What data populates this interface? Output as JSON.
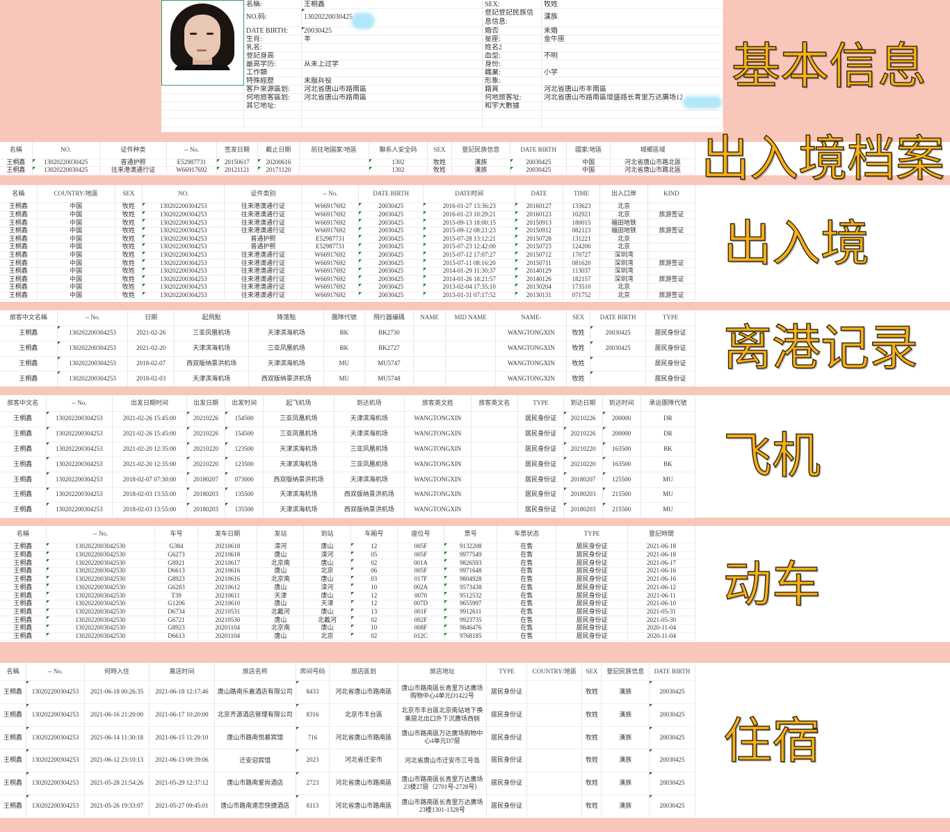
{
  "colors": {
    "background": "#f9c6ba",
    "overlay_text": "#f6b01a",
    "redaction": "#aee6fa"
  },
  "overlays": [
    "基本信息",
    "出入境档案",
    "出入境",
    "离港记录",
    "飞机",
    "动车",
    "住宿"
  ],
  "basic": {
    "photo": "portrait-photo",
    "rows": [
      [
        "名稱:",
        "王桐鑫",
        "SEX:",
        "牧姓"
      ],
      [
        "NO.码:",
        "13020220030425",
        "登記登記民族信息信息:",
        "漢族"
      ],
      [
        "DATE BIRTH:",
        "20030425",
        "婚否",
        "未婚"
      ],
      [
        "生肖:",
        "羊",
        "星座:",
        "金牛座"
      ],
      [
        "乳名:",
        "",
        "姓名2",
        ""
      ],
      [
        "登記身高",
        "",
        "血型:",
        "不明"
      ],
      [
        "最高学历:",
        "从未上过学",
        "身份:",
        ""
      ],
      [
        "工作類",
        "",
        "職業:",
        "小学"
      ],
      [
        "特殊經歷",
        "未服兵役",
        "形象:",
        ""
      ],
      [
        "客戶來源區划:",
        "河北省唐山市路南區",
        "籍貫",
        "河北省唐山市丰南區"
      ],
      [
        "何地旅客區划:",
        "河北省唐山市路南區",
        "何地旅客址:",
        "河北省唐山市路南區增盛路长青里万达廣场12"
      ],
      [
        "其它地址:",
        "",
        "和宇大數據",
        ""
      ]
    ]
  },
  "sections": [
    {
      "id": "s2",
      "headers": [
        "名稱",
        "NO.",
        "证件种类",
        "-- No.",
        "签发日期",
        "截止日期",
        "前往地国家/地區",
        "聯系人安全码",
        "SEX",
        "登記民族信息",
        "DATE BIRTH",
        "國家/地區",
        "城鄉區域"
      ],
      "rows": [
        [
          "王桐鑫",
          "13020220030425",
          "普通护照",
          "E52987731",
          "20150617",
          "20200616",
          "",
          "1302",
          "牧姓",
          "漢族",
          "20030425",
          "中国",
          "河北省唐山市路北區"
        ],
        [
          "王桐鑫",
          "13020220030425",
          "往来港澳通行证",
          "W66917692",
          "20121121",
          "20171120",
          "",
          "1302",
          "牧姓",
          "漢族",
          "20030425",
          "中国",
          "河北省唐山市路北區"
        ]
      ]
    },
    {
      "id": "s3",
      "headers": [
        "名稱",
        "COUNTRY/地區",
        "SEX",
        "NO.",
        "证件类别",
        "-- No.",
        "DATE BIRTH",
        "DATE时间",
        "DATE",
        "TIME",
        "出入口岸",
        "KIND"
      ],
      "rows": [
        [
          "王桐鑫",
          "中国",
          "牧姓",
          "130202200304253",
          "往来港澳通行证",
          "W66917692",
          "20030425",
          "2016-01-27 13:36:23",
          "20160127",
          "133623",
          "北京",
          ""
        ],
        [
          "王桐鑫",
          "中国",
          "牧姓",
          "130202200304253",
          "往来港澳通行证",
          "W66917692",
          "20030425",
          "2016-01-23 10:29:21",
          "20160123",
          "102921",
          "北京",
          "旅游签证"
        ],
        [
          "王桐鑫",
          "中国",
          "牧姓",
          "130202200304253",
          "往来港澳通行证",
          "W66917692",
          "20030425",
          "2015-09-13 18:00:15",
          "20150913",
          "180015",
          "福田地铁",
          ""
        ],
        [
          "王桐鑫",
          "中国",
          "牧姓",
          "130202200304253",
          "往来港澳通行证",
          "W66917692",
          "20030425",
          "2015-09-12 08:21:23",
          "20150912",
          "082123",
          "福田地铁",
          "旅游签证"
        ],
        [
          "王桐鑫",
          "中国",
          "牧姓",
          "130202200304253",
          "普通护照",
          "E52987731",
          "20030425",
          "2015-07-28 13:12:21",
          "20150728",
          "131221",
          "北京",
          ""
        ],
        [
          "王桐鑫",
          "中国",
          "牧姓",
          "130202200304253",
          "普通护照",
          "E52987731",
          "20030425",
          "2015-07-23 12:42:00",
          "20150723",
          "124200",
          "北京",
          ""
        ],
        [
          "王桐鑫",
          "中国",
          "牧姓",
          "130202200304253",
          "往来港澳通行证",
          "W66917692",
          "20030425",
          "2015-07-12 17:07:27",
          "20150712",
          "170727",
          "深圳湾",
          ""
        ],
        [
          "王桐鑫",
          "中国",
          "牧姓",
          "130202200304253",
          "往来港澳通行证",
          "W66917692",
          "20030425",
          "2015-07-11 08:16:20",
          "20150711",
          "081620",
          "深圳湾",
          "旅游签证"
        ],
        [
          "王桐鑫",
          "中国",
          "牧姓",
          "130202200304253",
          "往来港澳通行证",
          "W66917692",
          "20030425",
          "2014-01-29 11:30:37",
          "20140129",
          "113037",
          "深圳湾",
          ""
        ],
        [
          "王桐鑫",
          "中国",
          "牧姓",
          "130202200304253",
          "往来港澳通行证",
          "W66917692",
          "20030425",
          "2014-01-26 18:21:57",
          "20140126",
          "182157",
          "深圳湾",
          "旅游签证"
        ],
        [
          "王桐鑫",
          "中国",
          "牧姓",
          "130202200304253",
          "往来港澳通行证",
          "W66917692",
          "20030425",
          "2013-02-04 17:35:10",
          "20130204",
          "173510",
          "北京",
          ""
        ],
        [
          "王桐鑫",
          "中国",
          "牧姓",
          "130202200304253",
          "往来港澳通行证",
          "W66917692",
          "20030425",
          "2013-01-31 07:17:52",
          "20130131",
          "071752",
          "北京",
          "旅游签证"
        ]
      ]
    },
    {
      "id": "s4",
      "headers": [
        "旅客中文名稱",
        "-- No.",
        "日期",
        "起飛點",
        "降落點",
        "團隊代號",
        "飛行器编碼",
        "NAME",
        "MID NAME",
        "NAME-",
        "SEX",
        "DATE BIRTH",
        "TYPE"
      ],
      "rows": [
        [
          "王桐鑫",
          "130202200304253",
          "2021-02-26",
          "三亚凤凰机场",
          "天津滨海机场",
          "BK",
          "BK2730",
          "",
          "",
          "WANGTONGXIN",
          "牧姓",
          "20030425",
          "居民身份证"
        ],
        [
          "王桐鑫",
          "130202200304253",
          "2021-02-20",
          "天津滨海机场",
          "三亚凤凰机场",
          "BK",
          "BK2727",
          "",
          "",
          "WANGTONGXIN",
          "牧姓",
          "20030425",
          "居民身份证"
        ],
        [
          "王桐鑫",
          "130202200304253",
          "2018-02-07",
          "西双版纳景洪机场",
          "天津滨海机场",
          "MU",
          "MU5747",
          "",
          "",
          "WANGTONGXIN",
          "牧姓",
          "",
          "居民身份证"
        ],
        [
          "王桐鑫",
          "130202200304253",
          "2018-02-03",
          "天津滨海机场",
          "西双版纳景洪机场",
          "MU",
          "MU5748",
          "",
          "",
          "WANGTONGXIN",
          "牧姓",
          "",
          "居民身份证"
        ]
      ]
    },
    {
      "id": "s5",
      "headers": [
        "旅客中文名",
        "-- No.",
        "出发日期时间",
        "出发日期",
        "出发时间",
        "起飞机场",
        "到达机场",
        "旅客英文姓",
        "旅客英文名",
        "TYPE",
        "到达日期",
        "到达时间",
        "承运團隊代號"
      ],
      "rows": [
        [
          "王桐鑫",
          "130202200304253",
          "2021-02-26 15:45:00",
          "20210226",
          "154500",
          "三亚凤凰机场",
          "天津滨海机场",
          "WANGTONGXIN",
          "",
          "居民身份证",
          "20210226",
          "200000",
          "DR"
        ],
        [
          "王桐鑫",
          "130202200304253",
          "2021-02-26 15:45:00",
          "20210226",
          "154500",
          "三亚凤凰机场",
          "天津滨海机场",
          "WANGTONGXIN",
          "",
          "居民身份证",
          "20210226",
          "200000",
          "DR"
        ],
        [
          "王桐鑫",
          "130202200304253",
          "2021-02-20 12:35:00",
          "20210220",
          "123500",
          "天津滨海机场",
          "三亚凤凰机场",
          "WANGTONGXIN",
          "",
          "居民身份证",
          "20210220",
          "163500",
          "BK"
        ],
        [
          "王桐鑫",
          "130202200304253",
          "2021-02-20 12:35:00",
          "20210220",
          "123500",
          "天津滨海机场",
          "三亚凤凰机场",
          "WANGTONGXIN",
          "",
          "居民身份证",
          "20210220",
          "163500",
          "BK"
        ],
        [
          "王桐鑫",
          "130202200304253",
          "2018-02-07 07:30:00",
          "20180207",
          "073000",
          "西双版纳景洪机场",
          "天津滨海机场",
          "WANGTONGXIN",
          "",
          "居民身份证",
          "20180207",
          "125500",
          "MU"
        ],
        [
          "王桐鑫",
          "130202200304253",
          "2018-02-03 13:55:00",
          "20180203",
          "135500",
          "天津滨海机场",
          "西双版纳景洪机场",
          "WANGTONGXIN",
          "",
          "居民身份证",
          "20180203",
          "215500",
          "MU"
        ],
        [
          "王桐鑫",
          "130202200304253",
          "2018-02-03 13:55:00",
          "20180203",
          "135500",
          "天津滨海机场",
          "西双版纳景洪机场",
          "WANGTONGXIN",
          "",
          "居民身份证",
          "20180203",
          "215500",
          "MU"
        ]
      ]
    },
    {
      "id": "s6",
      "headers": [
        "名稱",
        "-- No.",
        "车号",
        "发车日期",
        "发站",
        "到站",
        "车厢号",
        "座位号",
        "票号",
        "车票状态",
        "TYPE",
        "登記時間"
      ],
      "rows": [
        [
          "王桐鑫",
          "1302022003042530",
          "G384",
          "20210618",
          "滦河",
          "唐山",
          "12",
          "005F",
          "9132208",
          "在售",
          "居民身份证",
          "2021-06-18"
        ],
        [
          "王桐鑫",
          "1302022003042530",
          "G6273",
          "20210618",
          "唐山",
          "滦河",
          "05",
          "005F",
          "9977549",
          "在售",
          "居民身份证",
          "2021-06-18"
        ],
        [
          "王桐鑫",
          "1302022003042530",
          "G8921",
          "20210617",
          "北京南",
          "唐山",
          "02",
          "001A",
          "9826593",
          "在售",
          "居民身份证",
          "2021-06-17"
        ],
        [
          "王桐鑫",
          "1302022003042530",
          "D6613",
          "20210616",
          "唐山",
          "北京",
          "06",
          "005F",
          "9971648",
          "在售",
          "居民身份证",
          "2021-06-16"
        ],
        [
          "王桐鑫",
          "1302022003042530",
          "G8923",
          "20210616",
          "北京南",
          "唐山",
          "03",
          "017F",
          "9804928",
          "在售",
          "居民身份证",
          "2021-06-16"
        ],
        [
          "王桐鑫",
          "1302022003042530",
          "G6283",
          "20210612",
          "唐山",
          "滦河",
          "10",
          "002A",
          "9573438",
          "在售",
          "居民身份证",
          "2021-06-12"
        ],
        [
          "王桐鑫",
          "1302022003042530",
          "T39",
          "20210611",
          "天津",
          "唐山",
          "12",
          "0070",
          "9512532",
          "在售",
          "居民身份证",
          "2021-06-11"
        ],
        [
          "王桐鑫",
          "1302022003042530",
          "G1206",
          "20210610",
          "唐山",
          "天津",
          "12",
          "007D",
          "9655997",
          "在售",
          "居民身份证",
          "2021-06-10"
        ],
        [
          "王桐鑫",
          "1302022003042530",
          "D6734",
          "20210531",
          "北戴河",
          "唐山",
          "13",
          "001F",
          "9912611",
          "在售",
          "居民身份证",
          "2021-05-31"
        ],
        [
          "王桐鑫",
          "1302022003042530",
          "G6721",
          "20210530",
          "唐山",
          "北戴河",
          "02",
          "002F",
          "9923735",
          "在售",
          "居民身份证",
          "2021-05-30"
        ],
        [
          "王桐鑫",
          "1302022003042530",
          "G8923",
          "20201104",
          "北京南",
          "唐山",
          "10",
          "008F",
          "9846476",
          "在售",
          "居民身份证",
          "2020-11-04"
        ],
        [
          "王桐鑫",
          "1302022003042530",
          "D6613",
          "20201104",
          "唐山",
          "北京",
          "02",
          "012C",
          "9768185",
          "在售",
          "居民身份证",
          "2020-11-04"
        ]
      ]
    },
    {
      "id": "s7",
      "headers": [
        "名稱",
        "-- No.",
        "何時入住",
        "离店时间",
        "旅店名称",
        "房间号码",
        "旅店區划",
        "旅店地址",
        "TYPE",
        "COUNTRY/地區",
        "SEX",
        "登記民族信息",
        "DATE BIRTH"
      ],
      "rows": [
        [
          "王桐鑫",
          "130202200304253",
          "2021-06-18 00:26:35",
          "2021-06-18 12:17:46",
          "唐山路南乐嘉酒店有限公司",
          "8433",
          "河北省唐山市路南區",
          "唐山市路南區长青里万达廣场购物中心4单元D1422号",
          "居民身份证",
          "",
          "牧姓",
          "漢族",
          "20030425"
        ],
        [
          "王桐鑫",
          "130202200304253",
          "2021-06-16 21:20:00",
          "2021-06-17 10:20:00",
          "北京齐源酒店管理有限公司",
          "8316",
          "北京市丰台區",
          "北京市丰台區北京南站地下换乘层北出口外下沉廣场西侧",
          "居民身份证",
          "",
          "牧姓",
          "漢族",
          "20030425"
        ],
        [
          "王桐鑫",
          "130202200304253",
          "2021-06-14 11:30:18",
          "2021-06-15 11:29:10",
          "唐山市路南悦慕宾馆",
          "716",
          "河北省唐山市路南區",
          "唐山市路南區万达廣场购物中心4单元D7层",
          "居民身份证",
          "",
          "牧姓",
          "漢族",
          "20030425"
        ],
        [
          "王桐鑫",
          "130202200304253",
          "2021-06-12 23:10:13",
          "2021-06-13 09:39:06",
          "迁安迎宾馆",
          "2023",
          "河北省迁安市",
          "河北省唐山市迁安市三号岛",
          "居民身份证",
          "",
          "牧姓",
          "漢族",
          "20030425"
        ],
        [
          "王桐鑫",
          "130202200304253",
          "2021-05-28 21:54:26",
          "2021-05-29 12:37:12",
          "唐山市路南爱尚酒店",
          "2723",
          "河北省唐山市路南區",
          "唐山市路南區长青里万达廣场23楼27层（2701号-2728号）",
          "居民身份证",
          "",
          "牧姓",
          "漢族",
          "20030425"
        ],
        [
          "王桐鑫",
          "130202200304253",
          "2021-05-26 19:33:07",
          "2021-05-27 09:45:01",
          "唐山市路南速恋快捷酒店",
          "8113",
          "河北省唐山市路南區",
          "唐山市路南區长青里万达廣场23楼1301-1328号",
          "居民身份证",
          "",
          "牧姓",
          "漢族",
          "20030425"
        ]
      ]
    }
  ]
}
